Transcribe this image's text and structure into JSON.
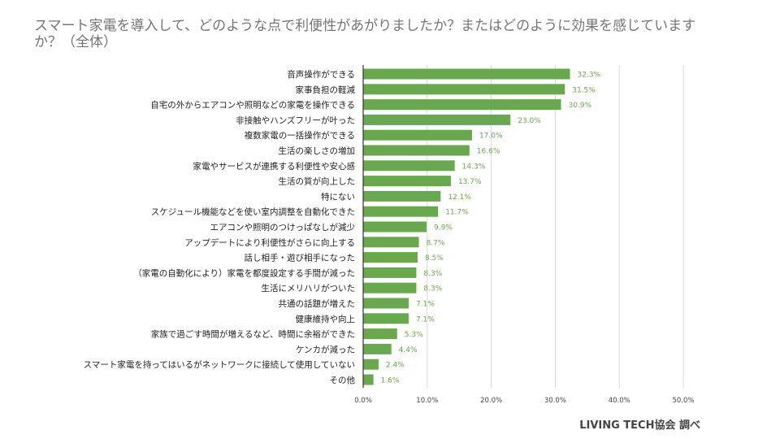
{
  "header": {
    "title": "スマート家電を導入して、どのような点で利便性があがりましたか？またはどのように効果を感じていますか？（全体）"
  },
  "footer": {
    "source": "LIVING TECH協会 調べ"
  },
  "colors": {
    "bar": "#6aa84f",
    "label": "#6aa84f",
    "grid": "#d9d9d9",
    "axis": "#333333",
    "category_text": "#222222",
    "tick_text": "#444444"
  },
  "chart_data": {
    "type": "bar",
    "orientation": "horizontal",
    "categories": [
      "音声操作ができる",
      "家事負担の軽減",
      "自宅の外からエアコンや照明などの家電を操作できる",
      "非接触やハンズフリーが叶った",
      "複数家電の一括操作ができる",
      "生活の楽しさの増加",
      "家電やサービスが連携する利便性や安心感",
      "生活の質が向上した",
      "特にない",
      "スケジュール機能などを使い室内調整を自動化できた",
      "エアコンや照明のつけっぱなしが減少",
      "アップデートにより利便性がさらに向上する",
      "話し相手・遊び相手になった",
      "（家電の自動化により）家電を都度設定する手間が減った",
      "生活にメリハリがついた",
      "共通の話題が増えた",
      "健康維持や向上",
      "家族で過ごす時間が増えるなど、時間に余裕ができた",
      "ケンカが減った",
      "スマート家電を持ってはいるがネットワークに接続して使用していない",
      "その他"
    ],
    "values": [
      32.3,
      31.5,
      30.9,
      23.0,
      17.0,
      16.6,
      14.3,
      13.7,
      12.1,
      11.7,
      9.9,
      8.7,
      8.5,
      8.3,
      8.3,
      7.1,
      7.1,
      5.3,
      4.4,
      2.4,
      1.6
    ],
    "value_labels": [
      "32.3%",
      "31.5%",
      "30.9%",
      "23.0%",
      "17.0%",
      "16.6%",
      "14.3%",
      "13.7%",
      "12.1%",
      "11.7%",
      "9.9%",
      "8.7%",
      "8.5%",
      "8.3%",
      "8.3%",
      "7.1%",
      "7.1%",
      "5.3%",
      "4.4%",
      "2.4%",
      "1.6%"
    ],
    "xlim": [
      0,
      50
    ],
    "x_ticks": [
      0,
      10,
      20,
      30,
      40,
      50
    ],
    "x_tick_labels": [
      "0.0%",
      "10.0%",
      "20.0%",
      "30.0%",
      "40.0%",
      "50.0%"
    ],
    "grid": true,
    "legend": "none"
  }
}
